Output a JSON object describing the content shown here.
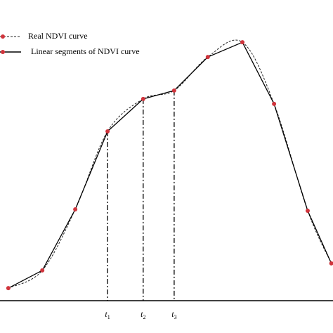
{
  "chart_data": {
    "type": "line",
    "x": [
      2.5,
      12.7,
      22.6,
      32.3,
      43.0,
      52.3,
      62.4,
      72.8,
      82.3,
      92.4,
      99.5
    ],
    "series": [
      {
        "name": "Real NDVI curve",
        "color": "#222222",
        "marker_color": "#d0343c",
        "values": [
          4.6,
          11.1,
          33.5,
          62.1,
          74.0,
          77.1,
          89.4,
          94.8,
          72.2,
          33.0,
          13.7
        ]
      },
      {
        "name": "Linear segments of NDVI curve",
        "color": "#000000",
        "values": [
          4.6,
          11.1,
          33.5,
          62.1,
          74.0,
          77.1,
          89.4,
          94.8,
          72.2,
          33.0,
          13.7
        ]
      }
    ],
    "xlim": [
      0,
      100
    ],
    "ylim": [
      0,
      100
    ],
    "annotations": [
      {
        "text": "t",
        "sub": "1",
        "x": 32.3,
        "y": 62.1
      },
      {
        "text": "t",
        "sub": "2",
        "x": 43.0,
        "y": 74.0
      },
      {
        "text": "t",
        "sub": "3",
        "x": 52.3,
        "y": 77.1
      }
    ]
  }
}
